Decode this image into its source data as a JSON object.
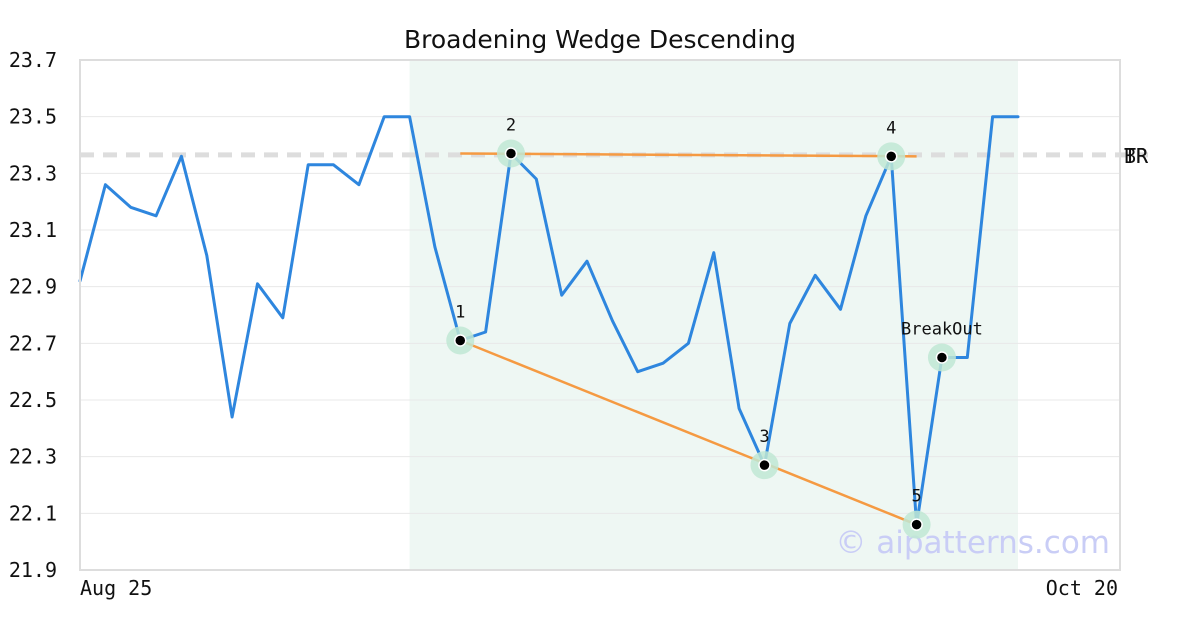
{
  "chart_data": {
    "type": "line",
    "title": "Broadening Wedge Descending",
    "xlabel": "",
    "ylabel": "",
    "x_tick_labels": [
      "Aug 25",
      "Oct 20"
    ],
    "ylim": [
      21.9,
      23.7
    ],
    "yticks": [
      21.9,
      22.1,
      22.3,
      22.5,
      22.7,
      22.9,
      23.1,
      23.3,
      23.5,
      23.7
    ],
    "grid": "horizontal",
    "series": [
      {
        "values": [
          22.92,
          23.26,
          23.18,
          23.15,
          23.36,
          23.01,
          22.44,
          22.91,
          22.79,
          23.33,
          23.33,
          23.26,
          23.5,
          23.5,
          23.04,
          22.71,
          22.74,
          23.37,
          23.28,
          22.87,
          22.99,
          22.78,
          22.6,
          22.63,
          22.7,
          23.02,
          22.47,
          22.27,
          22.77,
          22.94,
          22.82,
          23.15,
          23.36,
          22.06,
          22.65,
          22.65,
          23.5,
          23.5
        ],
        "color": "#2e86de"
      }
    ],
    "pattern_region": {
      "start_index": 13,
      "end_index": 37,
      "color": "#eef7f3"
    },
    "pattern_points": [
      {
        "label": "1",
        "index": 15,
        "value": 22.71
      },
      {
        "label": "2",
        "index": 17,
        "value": 23.37
      },
      {
        "label": "3",
        "index": 27,
        "value": 22.27
      },
      {
        "label": "4",
        "index": 32,
        "value": 23.36
      },
      {
        "label": "5",
        "index": 33,
        "value": 22.06
      },
      {
        "label": "BreakOut",
        "index": 34,
        "value": 22.65
      }
    ],
    "trendlines": [
      {
        "from": {
          "index": 15,
          "value": 23.37
        },
        "to": {
          "index": 33,
          "value": 23.36
        },
        "color": "#f59a42"
      },
      {
        "from": {
          "index": 15,
          "value": 22.71
        },
        "to": {
          "index": 33,
          "value": 22.06
        },
        "color": "#f59a42"
      }
    ],
    "reference_lines": [
      {
        "value": 23.365,
        "labels": [
          "TR",
          "BR"
        ],
        "color": "#dddddd",
        "style": "dashed"
      }
    ],
    "watermark": "© aipatterns.com",
    "colors": {
      "line": "#2e86de",
      "trend": "#f59a42",
      "marker_halo": "#bfe8d4",
      "marker": "#000000",
      "region": "#eef7f3"
    }
  }
}
